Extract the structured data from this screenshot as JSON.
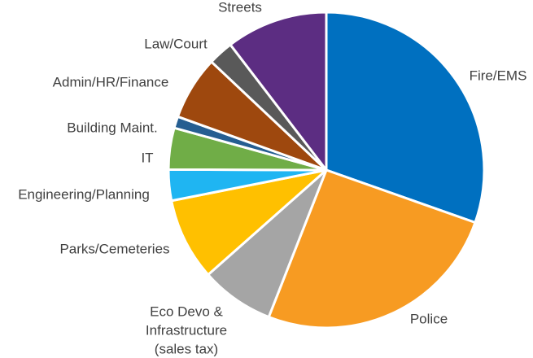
{
  "chart_data": {
    "type": "pie",
    "title": "",
    "start_angle_deg": 0,
    "direction": "clockwise",
    "slices": [
      {
        "label": "Fire/EMS",
        "value": 30.7,
        "color": "#0070C0"
      },
      {
        "label": "Police",
        "value": 25.8,
        "color": "#F79B22"
      },
      {
        "label": "Eco Devo & Infrastructure (sales tax)",
        "label_lines": [
          "Eco Devo &",
          "Infrastructure",
          "(sales tax)"
        ],
        "value": 7.6,
        "color": "#A5A5A5"
      },
      {
        "label": "Parks/Cemeteries",
        "value": 8.5,
        "color": "#FFC000"
      },
      {
        "label": "Engineering/Planning",
        "value": 3.2,
        "color": "#1FB5F2"
      },
      {
        "label": "IT",
        "value": 4.3,
        "color": "#70AD47"
      },
      {
        "label": "Building Maint.",
        "value": 1.2,
        "color": "#255E91"
      },
      {
        "label": "Admin/HR/Finance",
        "value": 6.6,
        "color": "#9E480E"
      },
      {
        "label": "Law/Court",
        "value": 2.6,
        "color": "#595959"
      },
      {
        "label": "Streets",
        "value": 10.5,
        "color": "#5C2D82"
      }
    ]
  }
}
